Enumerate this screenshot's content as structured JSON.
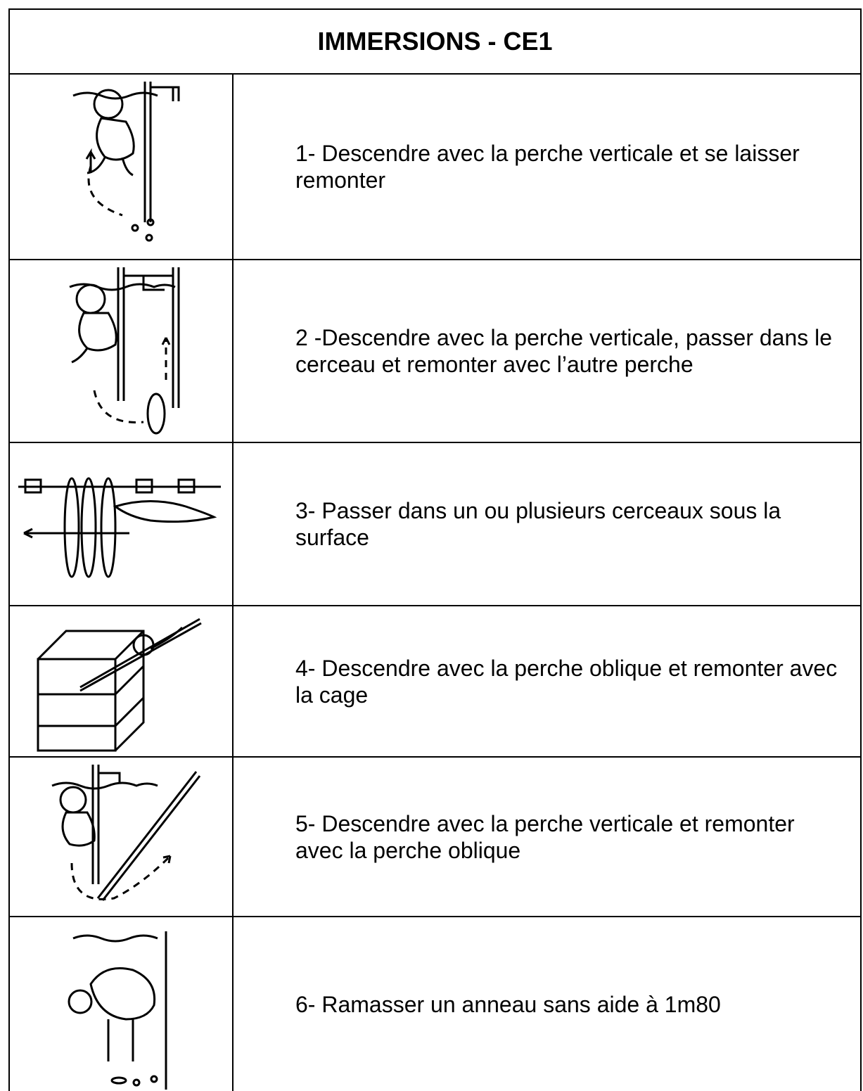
{
  "header": {
    "title": "IMMERSIONS - CE1"
  },
  "table": {
    "rows": [
      [
        "1- Descendre avec la perche verticale et se laisser remonter"
      ],
      [
        "2 -Descendre avec la perche verticale, passer dans le cerceau et remonter avec l’autre perche"
      ],
      [
        "3- Passer dans un ou plusieurs cerceaux sous la surface"
      ],
      [
        "4- Descendre avec la perche oblique et remonter avec la cage"
      ],
      [
        "5- Descendre avec la perche verticale et remonter avec la perche oblique"
      ],
      [
        "6- Ramasser un anneau sans aide à 1m80"
      ]
    ]
  }
}
